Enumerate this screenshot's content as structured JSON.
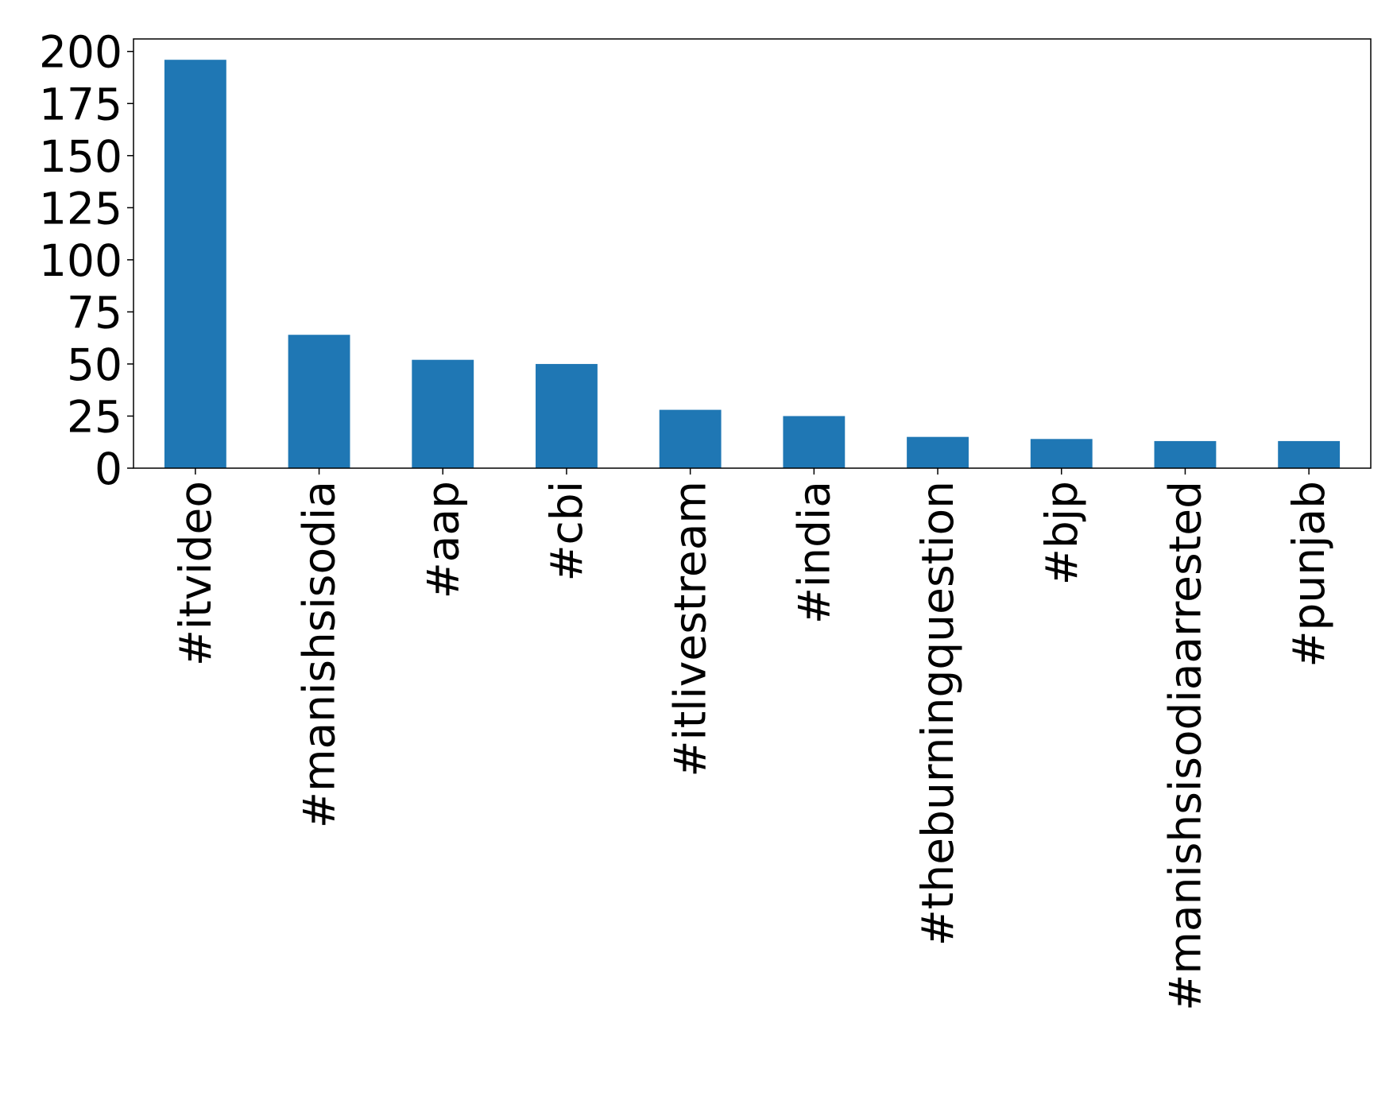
{
  "chart_data": {
    "type": "bar",
    "categories": [
      "#itvideo",
      "#manishsisodia",
      "#aap",
      "#cbi",
      "#itlivestream",
      "#india",
      "#theburningquestion",
      "#bjp",
      "#manishsisodiaarrested",
      "#punjab"
    ],
    "values": [
      196,
      64,
      52,
      50,
      28,
      25,
      15,
      14,
      13,
      13
    ],
    "title": "",
    "xlabel": "",
    "ylabel": "",
    "ylim": [
      0,
      206
    ],
    "yticks": [
      0,
      25,
      50,
      75,
      100,
      125,
      150,
      175,
      200
    ],
    "bar_color": "#1f77b4",
    "grid": false,
    "legend": "none"
  }
}
